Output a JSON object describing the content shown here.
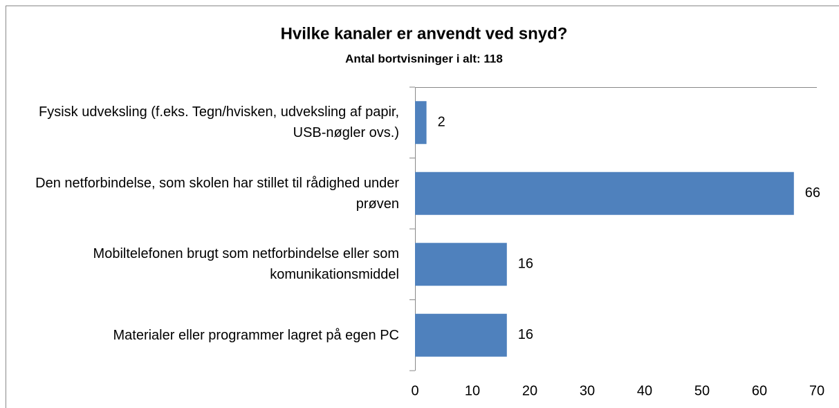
{
  "chart_data": {
    "type": "barh",
    "title": "Hvilke kanaler er anvendt ved snyd?",
    "subtitle": "Antal bortvisninger i alt: 118",
    "categories": [
      "Fysisk udveksling (f.eks. Tegn/hvisken, udveksling af papir, USB-nøgler ovs.)",
      "Den netforbindelse, som skolen har stillet til rådighed under prøven",
      "Mobiltelefonen brugt som netforbindelse eller som komunikationsmiddel",
      "Materialer eller programmer lagret på egen PC"
    ],
    "values": [
      2,
      66,
      16,
      16
    ],
    "color": "#4f81bd",
    "xlim": [
      0,
      70
    ],
    "xticks": [
      0,
      10,
      20,
      30,
      40,
      50,
      60,
      70
    ]
  }
}
